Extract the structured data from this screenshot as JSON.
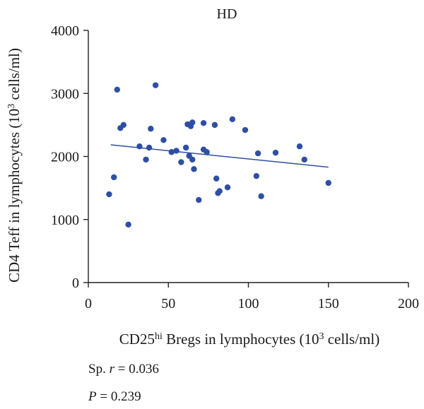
{
  "chart_data": {
    "type": "scatter",
    "title": "HD",
    "xlabel": {
      "prefix": "CD25",
      "superscript": "hi",
      "middle": " Bregs in lymphocytes (10",
      "unit_superscript": "3",
      "suffix": " cells/ml)"
    },
    "ylabel": {
      "main": "CD4 Teff in lymphocytes (10",
      "superscript": "3",
      "suffix": " cells/ml)"
    },
    "xlim": [
      0,
      200
    ],
    "ylim": [
      0,
      4000
    ],
    "xticks": [
      0,
      50,
      100,
      150,
      200
    ],
    "yticks": [
      0,
      1000,
      2000,
      3000,
      4000
    ],
    "grid": false,
    "point_color": "#2e4fa3",
    "line_color": "#2e4fa3",
    "regression_line": {
      "x": [
        14,
        150
      ],
      "y": [
        2185,
        1830
      ]
    },
    "points": [
      {
        "x": 13,
        "y": 1400
      },
      {
        "x": 16,
        "y": 1670
      },
      {
        "x": 18,
        "y": 3060
      },
      {
        "x": 20,
        "y": 2450
      },
      {
        "x": 22,
        "y": 2500
      },
      {
        "x": 25,
        "y": 920
      },
      {
        "x": 32,
        "y": 2160
      },
      {
        "x": 36,
        "y": 1950
      },
      {
        "x": 38,
        "y": 2140
      },
      {
        "x": 39,
        "y": 2440
      },
      {
        "x": 42,
        "y": 3130
      },
      {
        "x": 47,
        "y": 2260
      },
      {
        "x": 52,
        "y": 2070
      },
      {
        "x": 55,
        "y": 2090
      },
      {
        "x": 58,
        "y": 1910
      },
      {
        "x": 61,
        "y": 2140
      },
      {
        "x": 62,
        "y": 2510
      },
      {
        "x": 63,
        "y": 2010
      },
      {
        "x": 64,
        "y": 2480
      },
      {
        "x": 65,
        "y": 2540
      },
      {
        "x": 65,
        "y": 1950
      },
      {
        "x": 66,
        "y": 1800
      },
      {
        "x": 69,
        "y": 1310
      },
      {
        "x": 72,
        "y": 2530
      },
      {
        "x": 72,
        "y": 2110
      },
      {
        "x": 74,
        "y": 2070
      },
      {
        "x": 79,
        "y": 2500
      },
      {
        "x": 80,
        "y": 1650
      },
      {
        "x": 81,
        "y": 1420
      },
      {
        "x": 82,
        "y": 1450
      },
      {
        "x": 87,
        "y": 1510
      },
      {
        "x": 90,
        "y": 2590
      },
      {
        "x": 98,
        "y": 2420
      },
      {
        "x": 105,
        "y": 1690
      },
      {
        "x": 106,
        "y": 2050
      },
      {
        "x": 108,
        "y": 1370
      },
      {
        "x": 117,
        "y": 2060
      },
      {
        "x": 132,
        "y": 2160
      },
      {
        "x": 135,
        "y": 1950
      },
      {
        "x": 150,
        "y": 1580
      }
    ]
  },
  "stats": {
    "r_prefix": "Sp. ",
    "r_symbol": "r",
    "r_value": " = 0.036",
    "p_symbol": "P",
    "p_value": " = 0.239"
  }
}
